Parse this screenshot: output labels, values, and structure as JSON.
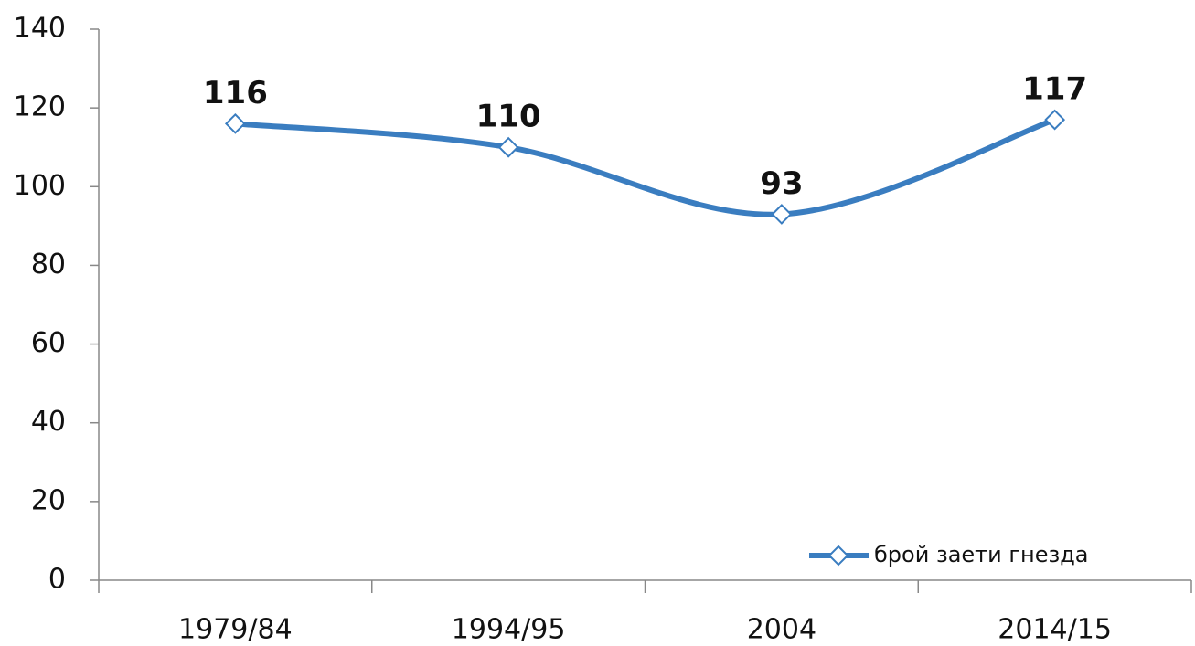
{
  "chart_data": {
    "type": "line",
    "categories": [
      "1979/84",
      "1994/95",
      "2004",
      "2014/15"
    ],
    "series": [
      {
        "name": "брой заети гнезда",
        "color": "#3a7dc0",
        "values": [
          116,
          110,
          93,
          117
        ]
      }
    ],
    "ylim": [
      0,
      140
    ],
    "yticks": [
      0,
      20,
      40,
      60,
      80,
      100,
      120,
      140
    ],
    "smooth": true,
    "marker": "diamond",
    "data_labels": true,
    "legend": "lower right",
    "grid": false
  }
}
